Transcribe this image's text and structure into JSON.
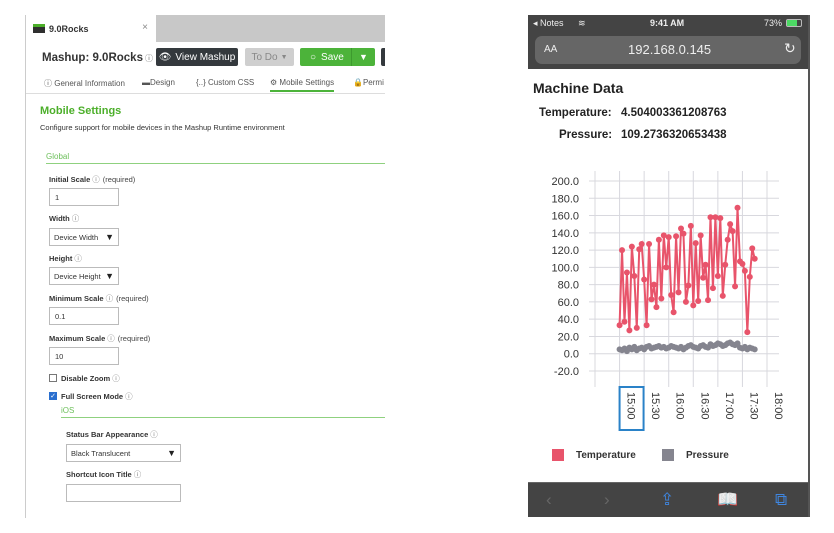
{
  "editor": {
    "tab_title": "9.0Rocks",
    "tab_close": "×",
    "mashup_label": "Mashup: 9.0Rocks",
    "help_icon": "ⓘ",
    "view_mashup": "View Mashup",
    "todo": "To Do",
    "save": "Save",
    "nav": [
      "General Information",
      "Design",
      "Custom CSS",
      "Mobile Settings",
      "Permi"
    ],
    "active_nav": "Mobile Settings",
    "section_title": "Mobile Settings",
    "section_desc": "Configure support for mobile devices in the Mashup Runtime environment",
    "group_global": "Global",
    "required": "(required)",
    "initial_scale": {
      "label": "Initial Scale",
      "value": "1"
    },
    "width": {
      "label": "Width",
      "value": "Device Width"
    },
    "height": {
      "label": "Height",
      "value": "Device Height"
    },
    "minimum_scale": {
      "label": "Minimum Scale",
      "value": "0.1"
    },
    "maximum_scale": {
      "label": "Maximum Scale",
      "value": "10"
    },
    "disable_zoom": {
      "label": "Disable Zoom",
      "checked": false
    },
    "full_screen": {
      "label": "Full Screen Mode",
      "checked": true
    },
    "group_ios": "iOS",
    "status_bar": {
      "label": "Status Bar Appearance",
      "value": "Black Translucent"
    },
    "shortcut_title": {
      "label": "Shortcut Icon Title",
      "value": ""
    },
    "accent_color": "#4cb33a"
  },
  "phone": {
    "back_app": "◂ Notes",
    "time": "9:41 AM",
    "battery": "73%",
    "text_size": "AA",
    "url": "192.168.0.145",
    "page_title": "Machine Data",
    "temperature_label": "Temperature:",
    "temperature_value": "4.504003361208763",
    "pressure_label": "Pressure:",
    "pressure_value": "109.2736320653438"
  },
  "chart_data": {
    "type": "line",
    "ylim": [
      -20,
      200
    ],
    "yticks": [
      "200.0",
      "180.0",
      "160.0",
      "140.0",
      "120.0",
      "100.0",
      "80.0",
      "60.0",
      "40.0",
      "20.0",
      "0.0",
      "-20.0"
    ],
    "xticks": [
      "15:00",
      "15:30",
      "16:00",
      "16:30",
      "17:00",
      "17:30",
      "18:00"
    ],
    "xlim": [
      "14:30",
      "18:00"
    ],
    "grid": true,
    "legend": "bottom",
    "x": [
      "15:00",
      "15:03",
      "15:06",
      "15:09",
      "15:12",
      "15:15",
      "15:18",
      "15:21",
      "15:24",
      "15:27",
      "15:30",
      "15:33",
      "15:36",
      "15:39",
      "15:42",
      "15:45",
      "15:48",
      "15:51",
      "15:54",
      "15:57",
      "16:00",
      "16:03",
      "16:06",
      "16:09",
      "16:12",
      "16:15",
      "16:18",
      "16:21",
      "16:24",
      "16:27",
      "16:30",
      "16:33",
      "16:36",
      "16:39",
      "16:42",
      "16:45",
      "16:48",
      "16:51",
      "16:54",
      "16:57",
      "17:00",
      "17:03",
      "17:06",
      "17:09",
      "17:12",
      "17:15",
      "17:18",
      "17:21",
      "17:24",
      "17:27",
      "17:30",
      "17:33",
      "17:36",
      "17:39",
      "17:42",
      "17:45"
    ],
    "series": [
      {
        "name": "Temperature",
        "color": "#e8546b",
        "values": [
          33,
          120,
          37,
          94,
          27,
          124,
          90,
          30,
          121,
          127,
          86,
          33,
          127,
          63,
          80,
          54,
          132,
          64,
          137,
          100,
          135,
          68,
          48,
          136,
          71,
          145,
          139,
          60,
          79,
          148,
          56,
          128,
          61,
          137,
          88,
          103,
          62,
          158,
          76,
          158,
          90,
          157,
          67,
          103,
          132,
          150,
          142,
          78,
          169,
          107,
          104,
          96,
          25,
          89,
          122,
          110
        ]
      },
      {
        "name": "Pressure",
        "color": "#85858f",
        "values": [
          5,
          4,
          6,
          3,
          7,
          5,
          8,
          4,
          6,
          7,
          5,
          8,
          9,
          6,
          7,
          8,
          9,
          7,
          8,
          6,
          7,
          9,
          8,
          7,
          6,
          8,
          5,
          7,
          9,
          10,
          8,
          7,
          6,
          9,
          10,
          8,
          7,
          11,
          9,
          10,
          12,
          11,
          9,
          10,
          12,
          13,
          11,
          10,
          12,
          7,
          6,
          8,
          5,
          7,
          6,
          5
        ]
      }
    ],
    "focused_tick": "15:00"
  }
}
